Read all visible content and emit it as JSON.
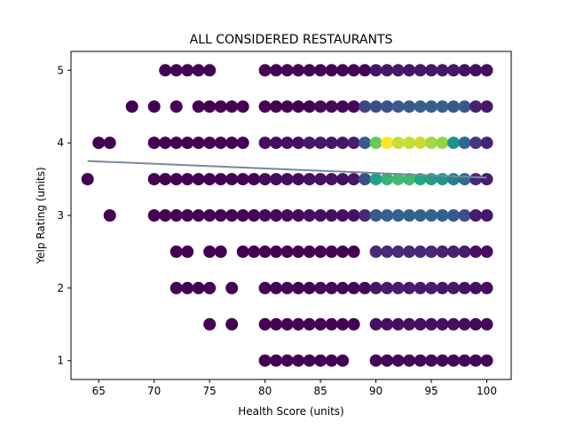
{
  "chart_data": {
    "type": "scatter",
    "title": "ALL CONSIDERED RESTAURANTS",
    "xlabel": "Health Score (units)",
    "ylabel": "Yelp Rating (units)",
    "xlim": [
      62.5,
      102.2
    ],
    "ylim": [
      0.74,
      5.26
    ],
    "xticks": [
      65,
      70,
      75,
      80,
      85,
      90,
      95,
      100
    ],
    "yticks": [
      1,
      2,
      3,
      4,
      5
    ],
    "grid": false,
    "colormap": "viridis",
    "color_scale_note": "marker colour encodes how many restaurants share the same (health score, rating) pair",
    "colors": {
      "low": "#440154",
      "mid": "#31688e",
      "high": "#fde725",
      "fit_line": "#778899"
    },
    "rows": [
      {
        "y": 5.0,
        "x": [
          71,
          72,
          73,
          74,
          75,
          80,
          81,
          82,
          83,
          84,
          85,
          86,
          87,
          88,
          89,
          90,
          91,
          92,
          93,
          94,
          95,
          96,
          97,
          98,
          99,
          100
        ],
        "level": [
          0,
          0,
          0,
          0,
          0,
          0,
          0,
          0,
          0,
          0,
          0,
          0,
          0,
          0,
          0,
          0.08,
          0.08,
          0.08,
          0.08,
          0.08,
          0.08,
          0.08,
          0.08,
          0.06,
          0.05,
          0.05
        ]
      },
      {
        "y": 4.5,
        "x": [
          68,
          70,
          72,
          74,
          75,
          76,
          77,
          78,
          80,
          81,
          82,
          83,
          84,
          85,
          86,
          87,
          88,
          89,
          90,
          91,
          92,
          93,
          94,
          95,
          96,
          97,
          98,
          99,
          100
        ],
        "level": [
          0,
          0,
          0,
          0,
          0,
          0,
          0,
          0,
          0,
          0,
          0,
          0,
          0,
          0.02,
          0.02,
          0.02,
          0.02,
          0.25,
          0.3,
          0.32,
          0.35,
          0.35,
          0.38,
          0.38,
          0.38,
          0.35,
          0.35,
          0.12,
          0.08
        ]
      },
      {
        "y": 4.0,
        "x": [
          65,
          66,
          70,
          71,
          72,
          73,
          74,
          75,
          76,
          77,
          78,
          80,
          81,
          82,
          83,
          84,
          85,
          86,
          87,
          88,
          89,
          90,
          91,
          92,
          93,
          94,
          95,
          96,
          97,
          98,
          99,
          100
        ],
        "level": [
          0,
          0,
          0,
          0,
          0,
          0,
          0,
          0,
          0,
          0,
          0,
          0.05,
          0.05,
          0.05,
          0.05,
          0.08,
          0.08,
          0.08,
          0.08,
          0.1,
          0.35,
          0.85,
          1.0,
          0.95,
          0.95,
          0.95,
          0.92,
          0.9,
          0.65,
          0.42,
          0.2,
          0.12
        ]
      },
      {
        "y": 3.5,
        "x": [
          64,
          70,
          71,
          72,
          73,
          74,
          75,
          76,
          77,
          78,
          79,
          80,
          81,
          82,
          83,
          84,
          85,
          86,
          87,
          88,
          89,
          90,
          91,
          92,
          93,
          94,
          95,
          96,
          97,
          98,
          99,
          100
        ],
        "level": [
          0,
          0,
          0,
          0,
          0,
          0,
          0,
          0,
          0,
          0,
          0,
          0.04,
          0.04,
          0.04,
          0.04,
          0.06,
          0.06,
          0.06,
          0.06,
          0.08,
          0.3,
          0.7,
          0.78,
          0.8,
          0.8,
          0.75,
          0.7,
          0.65,
          0.55,
          0.45,
          0.15,
          0.1
        ]
      },
      {
        "y": 3.0,
        "x": [
          66,
          70,
          71,
          72,
          73,
          74,
          75,
          76,
          77,
          78,
          79,
          80,
          81,
          82,
          83,
          84,
          85,
          86,
          87,
          88,
          89,
          90,
          91,
          92,
          93,
          94,
          95,
          96,
          97,
          98,
          99,
          100
        ],
        "level": [
          0,
          0,
          0,
          0,
          0,
          0,
          0,
          0,
          0,
          0,
          0,
          0.03,
          0.03,
          0.03,
          0.03,
          0.05,
          0.05,
          0.05,
          0.05,
          0.06,
          0.15,
          0.35,
          0.38,
          0.4,
          0.4,
          0.4,
          0.4,
          0.38,
          0.35,
          0.3,
          0.1,
          0.08
        ]
      },
      {
        "y": 2.5,
        "x": [
          72,
          73,
          75,
          76,
          78,
          79,
          80,
          81,
          82,
          83,
          84,
          85,
          86,
          87,
          88,
          90,
          91,
          92,
          93,
          94,
          95,
          96,
          97,
          98,
          99,
          100
        ],
        "level": [
          0,
          0,
          0,
          0,
          0,
          0,
          0,
          0,
          0,
          0,
          0,
          0,
          0,
          0,
          0,
          0.15,
          0.15,
          0.15,
          0.15,
          0.15,
          0.15,
          0.12,
          0.12,
          0.1,
          0.06,
          0.05
        ]
      },
      {
        "y": 2.0,
        "x": [
          72,
          73,
          74,
          75,
          77,
          80,
          81,
          82,
          83,
          84,
          85,
          86,
          87,
          88,
          89,
          90,
          91,
          92,
          93,
          94,
          95,
          96,
          97,
          98,
          99,
          100
        ],
        "level": [
          0,
          0,
          0,
          0,
          0,
          0,
          0,
          0,
          0,
          0,
          0.02,
          0.02,
          0.02,
          0.02,
          0.02,
          0.08,
          0.1,
          0.1,
          0.1,
          0.1,
          0.1,
          0.08,
          0.08,
          0.06,
          0.05,
          0.04
        ]
      },
      {
        "y": 1.5,
        "x": [
          75,
          77,
          80,
          81,
          82,
          83,
          84,
          85,
          86,
          87,
          88,
          90,
          91,
          92,
          93,
          94,
          95,
          96,
          97,
          98,
          99,
          100
        ],
        "level": [
          0,
          0,
          0,
          0,
          0,
          0,
          0,
          0,
          0,
          0,
          0,
          0.05,
          0.05,
          0.05,
          0.05,
          0.05,
          0.05,
          0.05,
          0.05,
          0.04,
          0.03,
          0.03
        ]
      },
      {
        "y": 1.0,
        "x": [
          80,
          81,
          82,
          83,
          84,
          85,
          86,
          87,
          90,
          91,
          92,
          93,
          94,
          95,
          96,
          97,
          98,
          99,
          100
        ],
        "level": [
          0,
          0,
          0,
          0,
          0,
          0,
          0,
          0,
          0.02,
          0.02,
          0.02,
          0.02,
          0.02,
          0.02,
          0.02,
          0.02,
          0.02,
          0.02,
          0.02
        ]
      }
    ],
    "trend_line": {
      "x": [
        64,
        100
      ],
      "y": [
        3.75,
        3.52
      ]
    }
  }
}
